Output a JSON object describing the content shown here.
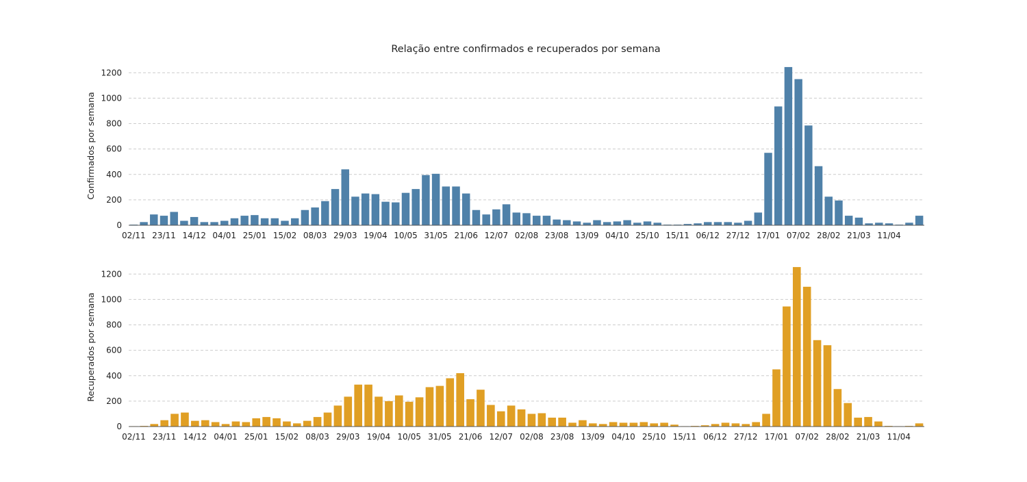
{
  "figure": {
    "title": "Relação entre confirmados e recuperados por semana"
  },
  "colors": {
    "confirmados": "#4f81a9",
    "recuperados": "#e09f24"
  },
  "chart_data": [
    {
      "type": "bar",
      "title": "Relação entre confirmados e recuperados por semana",
      "xlabel": "",
      "ylabel": "Confirmados por semana",
      "ylim": [
        0,
        1250
      ],
      "yticks": [
        0,
        200,
        400,
        600,
        800,
        1000,
        1200
      ],
      "grid": true,
      "x_tick_labels": [
        "02/11",
        "23/11",
        "14/12",
        "04/01",
        "25/01",
        "15/02",
        "08/03",
        "29/03",
        "19/04",
        "10/05",
        "31/05",
        "21/06",
        "12/07",
        "02/08",
        "23/08",
        "13/09",
        "04/10",
        "25/10",
        "15/11",
        "06/12",
        "27/12",
        "17/01",
        "07/02",
        "28/02",
        "21/03",
        "11/04"
      ],
      "values": [
        5,
        25,
        85,
        75,
        105,
        35,
        65,
        25,
        25,
        35,
        55,
        75,
        80,
        55,
        55,
        35,
        55,
        120,
        140,
        190,
        285,
        440,
        225,
        250,
        245,
        185,
        180,
        255,
        285,
        395,
        405,
        305,
        305,
        250,
        120,
        85,
        125,
        165,
        100,
        95,
        75,
        75,
        45,
        40,
        30,
        20,
        40,
        25,
        30,
        40,
        20,
        30,
        20,
        5,
        5,
        10,
        15,
        25,
        25,
        25,
        20,
        35,
        100,
        570,
        935,
        1245,
        1150,
        785,
        465,
        225,
        195,
        75,
        60,
        15,
        20,
        15,
        5,
        20,
        75
      ]
    },
    {
      "type": "bar",
      "title": "",
      "xlabel": "",
      "ylabel": "Recuperados por semana",
      "ylim": [
        0,
        1250
      ],
      "yticks": [
        0,
        200,
        400,
        600,
        800,
        1000,
        1200
      ],
      "grid": true,
      "x_tick_labels": [
        "02/11",
        "23/11",
        "14/12",
        "04/01",
        "25/01",
        "15/02",
        "08/03",
        "29/03",
        "19/04",
        "10/05",
        "31/05",
        "21/06",
        "12/07",
        "02/08",
        "23/08",
        "13/09",
        "04/10",
        "25/10",
        "15/11",
        "06/12",
        "27/12",
        "17/01",
        "07/02",
        "28/02",
        "21/03",
        "11/04"
      ],
      "values": [
        3,
        5,
        20,
        50,
        100,
        110,
        45,
        50,
        35,
        20,
        40,
        35,
        65,
        75,
        65,
        40,
        25,
        45,
        75,
        110,
        165,
        235,
        330,
        330,
        235,
        200,
        245,
        195,
        230,
        310,
        320,
        380,
        420,
        215,
        290,
        170,
        120,
        165,
        135,
        100,
        105,
        70,
        70,
        30,
        50,
        25,
        20,
        35,
        30,
        30,
        35,
        25,
        30,
        15,
        3,
        5,
        10,
        20,
        30,
        25,
        20,
        35,
        100,
        450,
        945,
        1255,
        1100,
        680,
        640,
        295,
        185,
        70,
        75,
        40,
        5,
        3,
        5,
        25
      ]
    }
  ]
}
